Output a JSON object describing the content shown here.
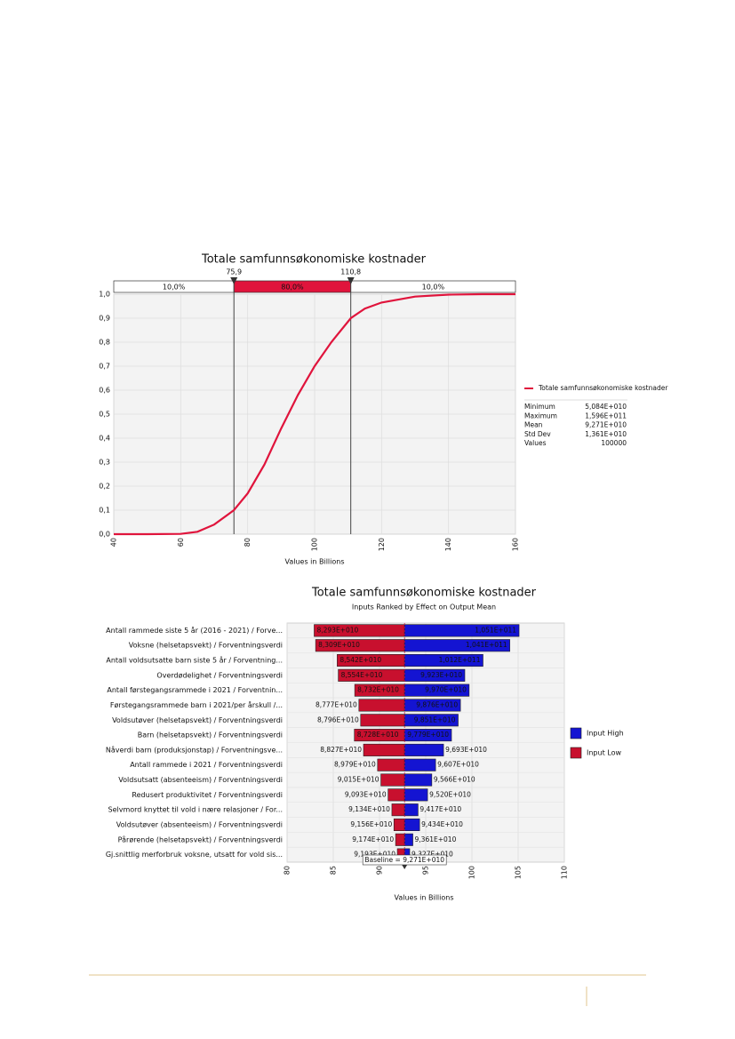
{
  "chart_data": [
    {
      "type": "line",
      "title": "Totale samfunnsøkonomiske kostnader",
      "x_label": "Values in Billions",
      "xlim": [
        40,
        160
      ],
      "xticks": [
        40,
        60,
        80,
        100,
        120,
        140,
        160
      ],
      "ylim": [
        0,
        1
      ],
      "yticks": [
        {
          "value": 0,
          "label": "0,0"
        },
        {
          "value": 0.1,
          "label": "0,1"
        },
        {
          "value": 0.2,
          "label": "0,2"
        },
        {
          "value": 0.3,
          "label": "0,3"
        },
        {
          "value": 0.4,
          "label": "0,4"
        },
        {
          "value": 0.5,
          "label": "0,5"
        },
        {
          "value": 0.6,
          "label": "0,6"
        },
        {
          "value": 0.7,
          "label": "0,7"
        },
        {
          "value": 0.8,
          "label": "0,8"
        },
        {
          "value": 0.9,
          "label": "0,9"
        },
        {
          "value": 1.0,
          "label": "1,0"
        }
      ],
      "grid": true,
      "series": [
        {
          "name": "Totale samfunnsøkonomiske kostnader",
          "color": "#e0143c",
          "x": [
            40,
            50,
            60,
            65,
            70,
            75.9,
            80,
            85,
            90,
            95,
            100,
            105,
            110.8,
            115,
            120,
            130,
            140,
            150,
            160
          ],
          "values": [
            0,
            0,
            0.001,
            0.01,
            0.04,
            0.1,
            0.17,
            0.29,
            0.44,
            0.58,
            0.7,
            0.8,
            0.9,
            0.94,
            0.965,
            0.99,
            0.998,
            1.0,
            1.0
          ]
        }
      ],
      "delimiters": [
        {
          "value": 75.9,
          "label": "75,9"
        },
        {
          "value": 110.8,
          "label": "110,8"
        }
      ],
      "delimiter_bands": {
        "values": [
          10,
          80,
          10
        ],
        "value_labels": [
          "10,0%",
          "80,0%",
          "10,0%"
        ]
      },
      "legend_stats": [
        {
          "label": "Minimum",
          "value": "5,084E+010"
        },
        {
          "label": "Maximum",
          "value": "1,596E+011"
        },
        {
          "label": "Mean",
          "value": "9,271E+010"
        },
        {
          "label": "Std Dev",
          "value": "1,361E+010"
        },
        {
          "label": "Values",
          "value": "100000"
        }
      ]
    },
    {
      "type": "tornado",
      "title": "Totale samfunnsøkonomiske kostnader",
      "subtitle": "Inputs Ranked by Effect on Output Mean",
      "x_label": "Values in Billions",
      "xlim": [
        80,
        110
      ],
      "xticks": [
        80,
        85,
        90,
        95,
        100,
        105,
        110
      ],
      "grid": true,
      "baseline": 92.71,
      "baseline_label": "Baseline = 9,271E+010",
      "categories": [
        "Antall rammede siste 5 år (2016 - 2021) / Forve...",
        "Voksne (helsetapsvekt) / Forventningsverdi",
        "Antall voldsutsatte barn siste 5 år / Forventning...",
        "Overdødelighet / Forventningsverdi",
        "Antall førstegangsrammede i 2021 / Forventnin...",
        "Førstegangsrammede barn i 2021/per årskull /...",
        "Voldsutøver (helsetapsvekt) / Forventningsverdi",
        "Barn (helsetapsvekt) / Forventningsverdi",
        "Nåverdi barn (produksjonstap) / Forventningsve...",
        "Antall rammede i 2021 / Forventningsverdi",
        "Voldsutsatt (absenteeism) / Forventningsverdi",
        "Redusert produktivitet / Forventningsverdi",
        "Selvmord knyttet til vold i nære relasjoner / For...",
        "Voldsutøver (absenteeism) / Forventningsverdi",
        "Pårørende (helsetapsvekt) / Forventningsverdi",
        "Gj.snittlig merforbruk voksne, utsatt for vold sis..."
      ],
      "series": [
        {
          "name": "Input Low",
          "color": "#c8102e",
          "values": [
            82.93,
            83.09,
            85.42,
            85.54,
            87.32,
            87.77,
            87.96,
            87.28,
            88.27,
            89.79,
            90.15,
            90.93,
            91.34,
            91.56,
            91.74,
            91.93
          ],
          "value_labels": [
            "8,293E+010",
            "8,309E+010",
            "8,542E+010",
            "8,554E+010",
            "8,732E+010",
            "8,777E+010",
            "8,796E+010",
            "8,728E+010",
            "8,827E+010",
            "8,979E+010",
            "9,015E+010",
            "9,093E+010",
            "9,134E+010",
            "9,156E+010",
            "9,174E+010",
            "9,193E+010"
          ]
        },
        {
          "name": "Input High",
          "color": "#1414d2",
          "values": [
            105.1,
            104.1,
            101.2,
            99.23,
            99.7,
            98.76,
            98.51,
            97.79,
            96.93,
            96.07,
            95.66,
            95.2,
            94.17,
            94.34,
            93.61,
            93.27
          ],
          "value_labels": [
            "1,051E+011",
            "1,041E+011",
            "1,012E+011",
            "9,923E+010",
            "9,970E+010",
            "9,876E+010",
            "9,851E+010",
            "9,779E+010",
            "9,693E+010",
            "9,607E+010",
            "9,566E+010",
            "9,520E+010",
            "9,417E+010",
            "9,434E+010",
            "9,361E+010",
            "9,327E+010"
          ]
        }
      ],
      "legend_order": [
        1,
        0
      ]
    }
  ]
}
